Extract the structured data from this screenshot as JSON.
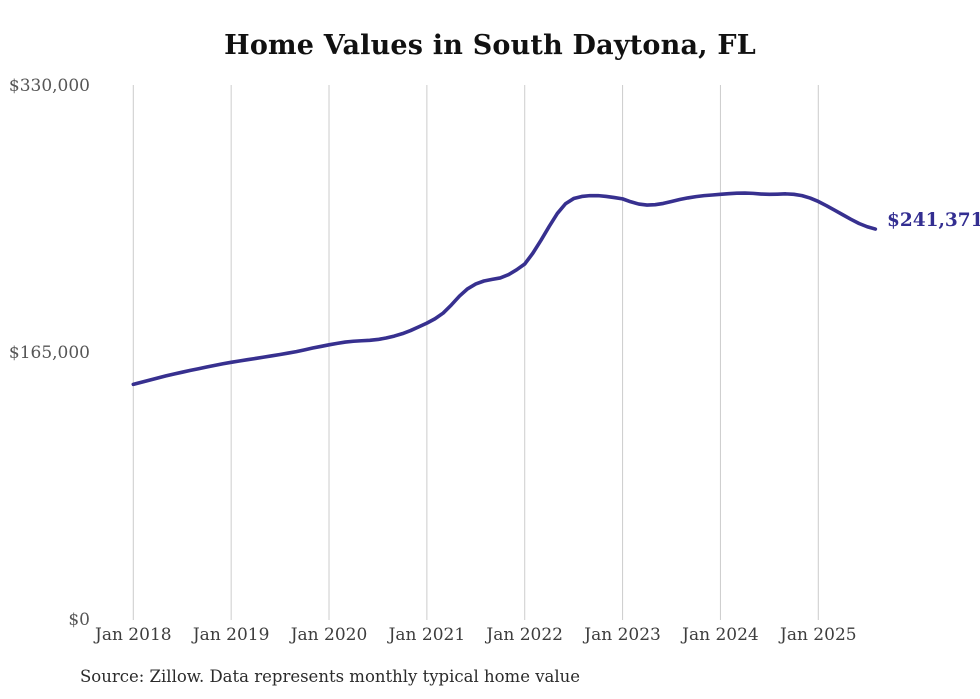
{
  "title": "Home Values in South Daytona, FL",
  "source_note": "Source: Zillow. Data represents monthly typical home value",
  "colors": {
    "line": "#37308f",
    "grid": "#cccccc",
    "title_text": "#111111",
    "y_axis_text": "#565656",
    "x_axis_text": "#3d3d3d",
    "end_label_text": "#332e91",
    "background": "#ffffff"
  },
  "chart_data": {
    "type": "line",
    "title": "Home Values in South Daytona, FL",
    "xlabel": "",
    "ylabel": "",
    "ylim": [
      0,
      330000
    ],
    "grid": "vertical-only",
    "legend": "none",
    "end_label": "$241,371",
    "end_value": 241371,
    "y_ticks": [
      {
        "value": 0,
        "label": "$0"
      },
      {
        "value": 165000,
        "label": "$165,000"
      },
      {
        "value": 330000,
        "label": "$330,000"
      }
    ],
    "x_tick_labels": [
      "Jan 2018",
      "Jan 2019",
      "Jan 2020",
      "Jan 2021",
      "Jan 2022",
      "Jan 2023",
      "Jan 2024",
      "Jan 2025"
    ],
    "series": [
      {
        "name": "Monthly typical home value",
        "start_month": "2018-01",
        "end_month": "2025-08",
        "values": [
          145500,
          146800,
          148100,
          149400,
          150700,
          151900,
          153000,
          154100,
          155100,
          156200,
          157200,
          158200,
          159100,
          159900,
          160700,
          161500,
          162300,
          163100,
          163900,
          164800,
          165700,
          166800,
          167900,
          168900,
          169900,
          170800,
          171600,
          172100,
          172400,
          172700,
          173200,
          174100,
          175300,
          176800,
          178700,
          181000,
          183300,
          186000,
          189500,
          194500,
          200000,
          204500,
          207500,
          209300,
          210300,
          211200,
          213200,
          216200,
          219800,
          226500,
          234500,
          243000,
          251000,
          257000,
          260200,
          261500,
          262000,
          262000,
          261500,
          260800,
          260000,
          258200,
          256800,
          256200,
          256400,
          257200,
          258400,
          259600,
          260600,
          261400,
          262000,
          262400,
          262800,
          263200,
          263500,
          263600,
          263400,
          263000,
          262800,
          262900,
          263100,
          262800,
          262000,
          260500,
          258400,
          255800,
          253000,
          250200,
          247400,
          244800,
          242800,
          241371
        ]
      }
    ]
  }
}
